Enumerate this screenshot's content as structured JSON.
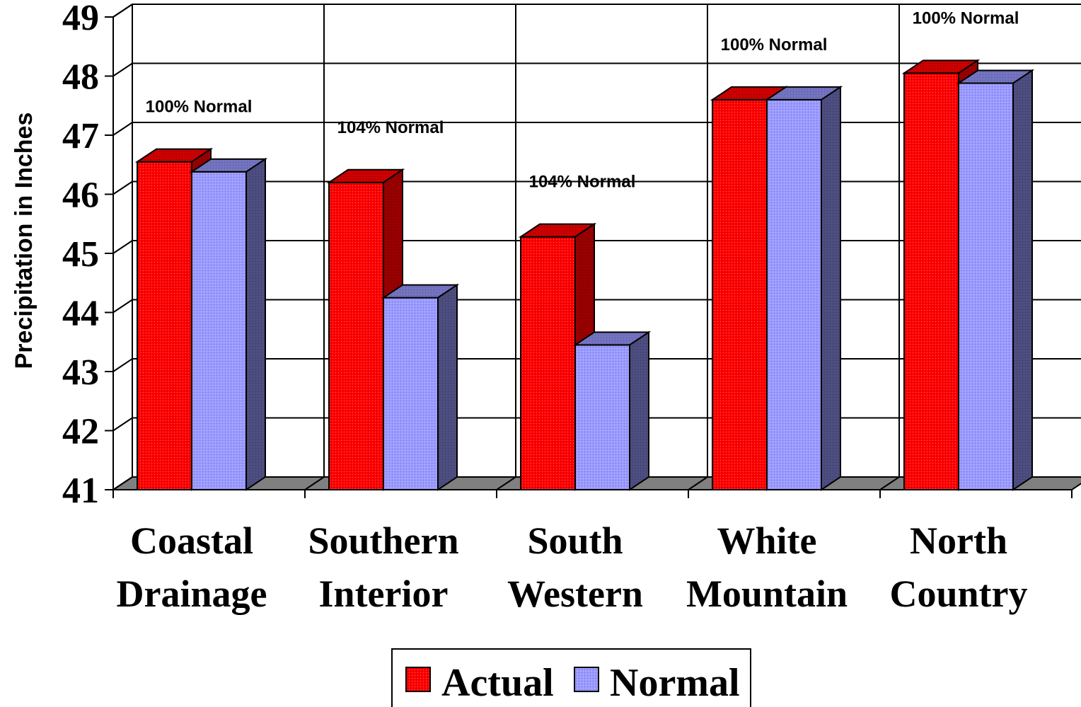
{
  "chart_data": {
    "type": "bar",
    "title": "",
    "xlabel": "",
    "ylabel": "Precipitation in Inches",
    "ylim": [
      41,
      49
    ],
    "yticks": [
      "41",
      "42",
      "43",
      "44",
      "45",
      "46",
      "47",
      "48",
      "49"
    ],
    "grid": true,
    "legend": "bottom",
    "categories": [
      [
        "Coastal",
        "Drainage"
      ],
      [
        "Southern",
        "Interior"
      ],
      [
        "South",
        "Western"
      ],
      [
        "White",
        "Mountain"
      ],
      [
        "North",
        "Country"
      ]
    ],
    "series": [
      {
        "name": "Actual",
        "color": "#ff0000",
        "values": [
          46.55,
          46.2,
          45.28,
          47.6,
          48.05
        ]
      },
      {
        "name": "Normal",
        "color": "#9999ff",
        "values": [
          46.38,
          44.25,
          43.45,
          47.6,
          47.88
        ]
      }
    ],
    "annotations": [
      "100% Normal",
      "104% Normal",
      "104% Normal",
      "100% Normal",
      "100% Normal"
    ]
  }
}
